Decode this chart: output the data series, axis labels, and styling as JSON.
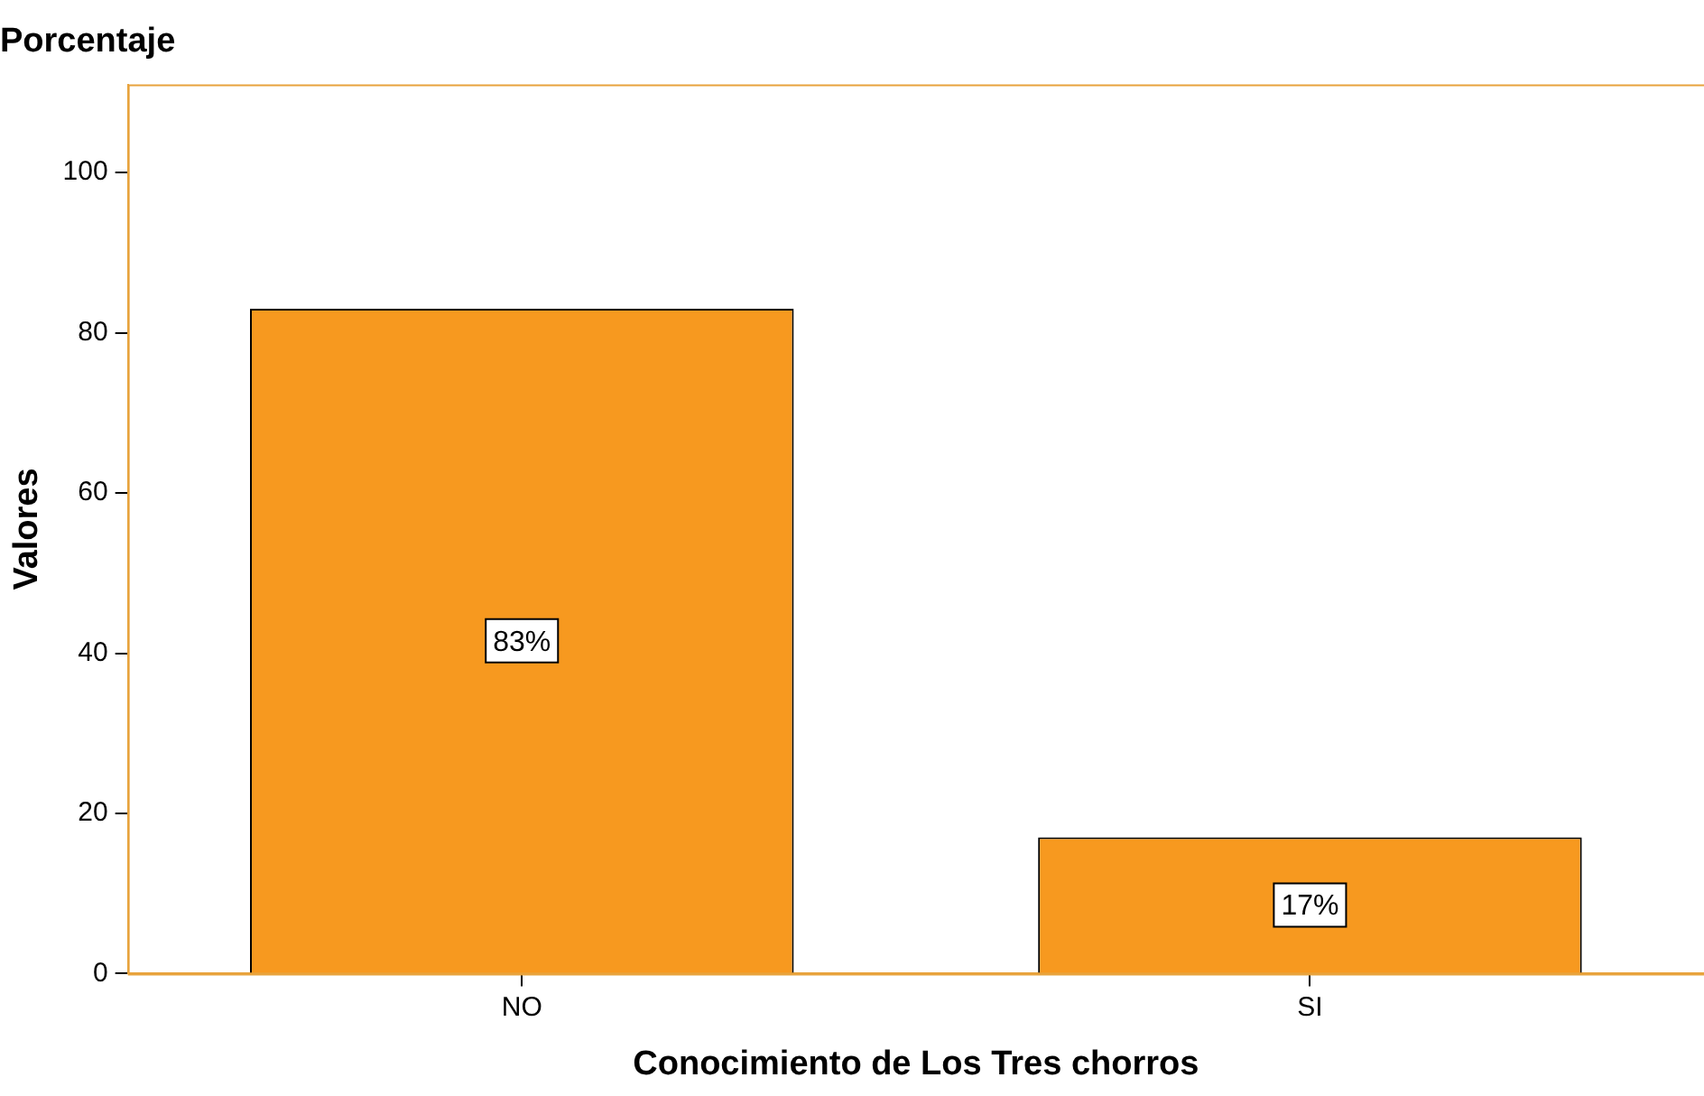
{
  "chart_data": {
    "type": "bar",
    "title": "Porcentaje",
    "xlabel": "Conocimiento de Los Tres chorros",
    "ylabel": "Valores",
    "categories": [
      "NO",
      "SI"
    ],
    "values": [
      83,
      17
    ],
    "value_labels": [
      "83%",
      "17%"
    ],
    "color": "#f7991f",
    "ylim": [
      0,
      111
    ],
    "yticks": [
      0,
      20,
      40,
      60,
      80,
      100
    ],
    "grid": false,
    "legend": false
  }
}
